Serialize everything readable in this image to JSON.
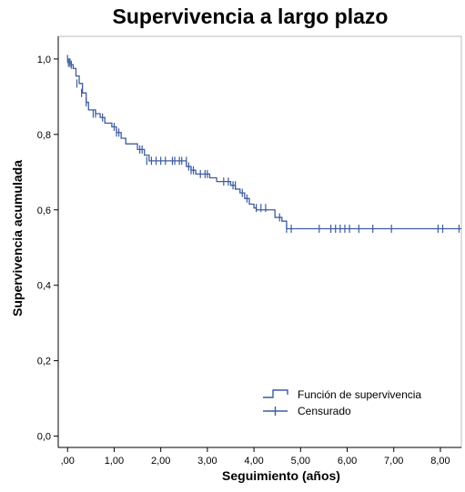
{
  "chart_data": {
    "type": "line",
    "title": "Supervivencia a largo plazo",
    "xlabel": "Seguimiento (años)",
    "ylabel": "Supervivencia acumulada",
    "xlim": [
      -0.2,
      8.45
    ],
    "ylim": [
      -0.03,
      1.06
    ],
    "x_ticks": [
      0,
      1,
      2,
      3,
      4,
      5,
      6,
      7,
      8
    ],
    "x_tick_labels": [
      ",00",
      "1,00",
      "2,00",
      "3,00",
      "4,00",
      "5,00",
      "6,00",
      "7,00",
      "8,00"
    ],
    "y_ticks": [
      0,
      0.2,
      0.4,
      0.6,
      0.8,
      1.0
    ],
    "y_tick_labels": [
      "0,0",
      "0,2",
      "0,4",
      "0,6",
      "0,8",
      "1,0"
    ],
    "grid": false,
    "legend_position": "bottom-right",
    "line_color": "#3f5c9e",
    "series": [
      {
        "name": "Función de supervivencia",
        "style": "step",
        "x": [
          0.0,
          0.05,
          0.08,
          0.12,
          0.18,
          0.25,
          0.32,
          0.4,
          0.45,
          0.6,
          0.7,
          0.8,
          0.95,
          1.05,
          1.15,
          1.25,
          1.5,
          1.65,
          1.75,
          2.55,
          2.65,
          2.75,
          3.05,
          3.2,
          3.5,
          3.6,
          3.7,
          3.8,
          3.9,
          4.0,
          4.05,
          4.45,
          4.6,
          4.7,
          8.45
        ],
        "y": [
          1.0,
          0.99,
          0.985,
          0.975,
          0.955,
          0.935,
          0.91,
          0.885,
          0.865,
          0.855,
          0.845,
          0.83,
          0.82,
          0.805,
          0.79,
          0.775,
          0.76,
          0.745,
          0.73,
          0.715,
          0.705,
          0.695,
          0.685,
          0.675,
          0.665,
          0.655,
          0.645,
          0.63,
          0.615,
          0.605,
          0.6,
          0.58,
          0.57,
          0.55,
          0.55
        ]
      },
      {
        "name": "Censurado",
        "style": "marker",
        "x": [
          0.0,
          0.02,
          0.05,
          0.08,
          0.2,
          0.3,
          0.4,
          0.55,
          0.6,
          0.75,
          1.0,
          1.05,
          1.1,
          1.55,
          1.6,
          1.7,
          1.8,
          1.9,
          2.0,
          2.1,
          2.25,
          2.3,
          2.4,
          2.45,
          2.55,
          2.6,
          2.65,
          2.7,
          2.85,
          2.95,
          3.0,
          3.35,
          3.45,
          3.55,
          3.6,
          3.75,
          3.85,
          4.05,
          4.15,
          4.25,
          4.55,
          4.7,
          4.8,
          5.4,
          5.65,
          5.75,
          5.85,
          5.95,
          6.05,
          6.25,
          6.55,
          6.95,
          7.95,
          8.05,
          8.4
        ],
        "y": [
          1.0,
          0.99,
          0.99,
          0.985,
          0.935,
          0.91,
          0.885,
          0.855,
          0.855,
          0.845,
          0.82,
          0.805,
          0.805,
          0.76,
          0.76,
          0.73,
          0.73,
          0.73,
          0.73,
          0.73,
          0.73,
          0.73,
          0.73,
          0.73,
          0.73,
          0.715,
          0.705,
          0.705,
          0.695,
          0.695,
          0.695,
          0.675,
          0.675,
          0.665,
          0.665,
          0.645,
          0.63,
          0.605,
          0.605,
          0.605,
          0.58,
          0.55,
          0.55,
          0.55,
          0.55,
          0.55,
          0.55,
          0.55,
          0.55,
          0.55,
          0.55,
          0.55,
          0.55,
          0.55,
          0.55
        ]
      }
    ]
  }
}
